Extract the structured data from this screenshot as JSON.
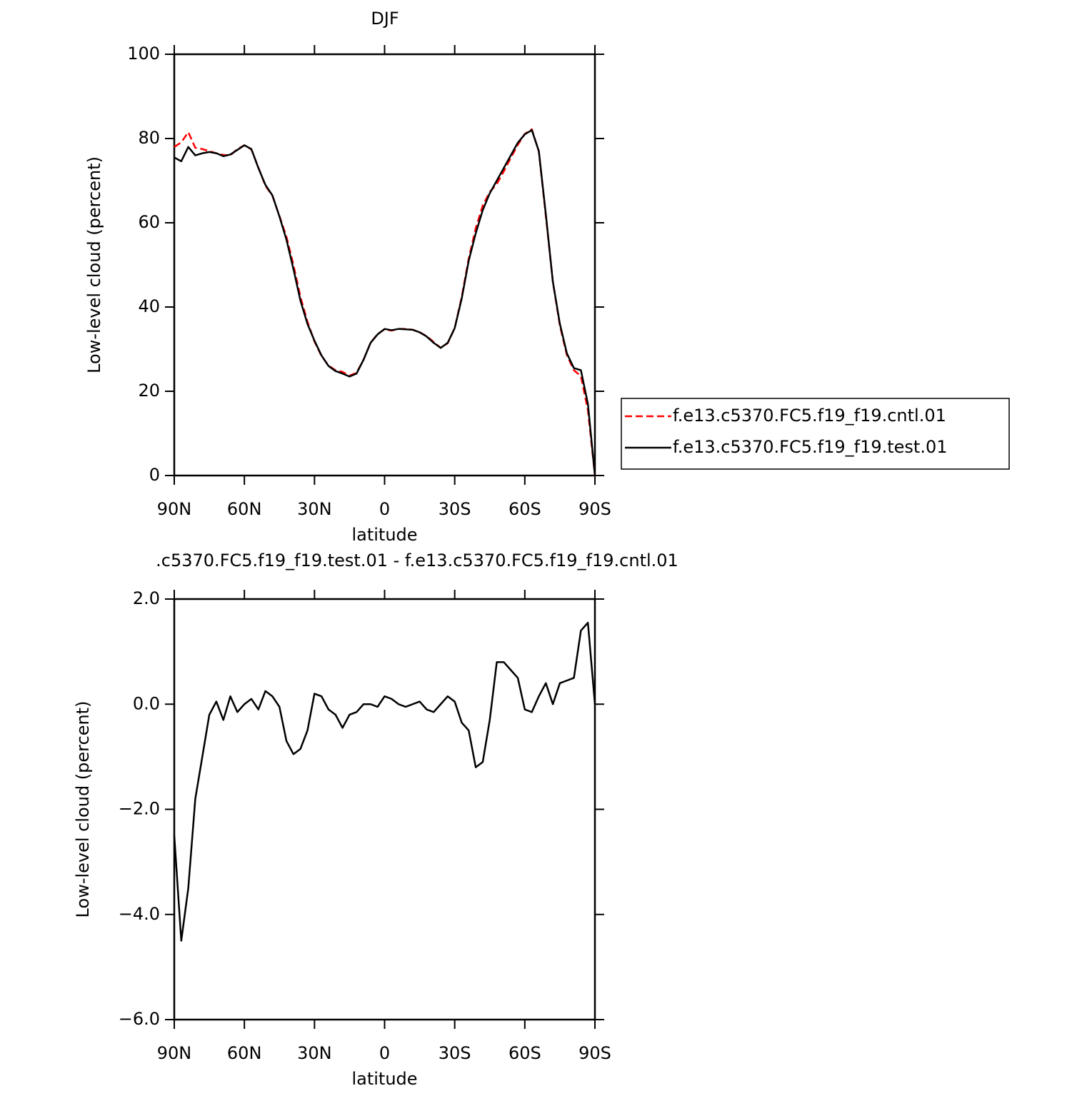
{
  "chart_data": [
    {
      "type": "line",
      "title": "DJF",
      "xlabel": "latitude",
      "ylabel": "Low-level cloud (percent)",
      "x": [
        90,
        87,
        84,
        81,
        78,
        75,
        72,
        69,
        66,
        63,
        60,
        57,
        54,
        51,
        48,
        45,
        42,
        39,
        36,
        33,
        30,
        27,
        24,
        21,
        18,
        15,
        12,
        9,
        6,
        3,
        0,
        -3,
        -6,
        -9,
        -12,
        -15,
        -18,
        -21,
        -24,
        -27,
        -30,
        -33,
        -36,
        -39,
        -42,
        -45,
        -48,
        -51,
        -54,
        -57,
        -60,
        -63,
        -66,
        -69,
        -72,
        -75,
        -78,
        -81,
        -84,
        -87,
        -90
      ],
      "series": [
        {
          "name": "f.e13.c5370.FC5.f19_f19.cntl.01",
          "color": "#ff0000",
          "dash": true,
          "values": [
            78,
            79.1,
            81.5,
            77.8,
            77.5,
            77,
            76.5,
            76.1,
            76,
            77.5,
            78.4,
            77.4,
            73.1,
            68.8,
            66.4,
            61.6,
            56.7,
            50,
            42.4,
            36.5,
            31.8,
            28.4,
            26.1,
            25,
            24.6,
            23.7,
            24.4,
            27.5,
            31.5,
            33.6,
            34.7,
            34.4,
            34.8,
            34.8,
            34.6,
            34,
            33.1,
            31.7,
            30.3,
            31.4,
            35,
            42.4,
            51.5,
            58.7,
            64.1,
            67.3,
            69.2,
            72.2,
            75.4,
            78.5,
            81.1,
            82.2,
            76.9,
            61.6,
            46,
            35.6,
            28.6,
            25,
            23.6,
            15.5,
            0
          ]
        },
        {
          "name": "f.e13.c5370.FC5.f19_f19.test.01",
          "color": "#000000",
          "dash": false,
          "values": [
            75.5,
            74.6,
            78,
            76,
            76.5,
            76.8,
            76.5,
            75.8,
            76.2,
            77.3,
            78.4,
            77.5,
            73,
            69,
            66.5,
            61.5,
            56,
            49,
            41.5,
            36,
            32,
            28.5,
            26,
            24.8,
            24.2,
            23.5,
            24.2,
            27.5,
            31.5,
            33.5,
            34.8,
            34.5,
            34.8,
            34.7,
            34.6,
            34,
            33,
            31.5,
            30.3,
            31.5,
            35,
            42,
            51,
            57.5,
            63,
            67,
            70,
            73,
            76,
            79,
            81,
            82,
            77,
            62,
            46,
            36,
            29,
            25.5,
            25,
            17,
            0
          ]
        }
      ],
      "xlim": [
        90,
        -90
      ],
      "xticks": [
        {
          "value": 90,
          "label": "90N"
        },
        {
          "value": 60,
          "label": "60N"
        },
        {
          "value": 30,
          "label": "30N"
        },
        0,
        {
          "value": -30,
          "label": "30S"
        },
        {
          "value": -60,
          "label": "60S"
        },
        {
          "value": -90,
          "label": "90S"
        }
      ],
      "ylim": [
        0,
        100
      ],
      "yticks": [
        0,
        20,
        40,
        60,
        80,
        100
      ],
      "grid": false,
      "legend": "right"
    },
    {
      "type": "line",
      "title": ".c5370.FC5.f19_f19.test.01 - f.e13.c5370.FC5.f19_f19.cntl.01",
      "xlabel": "latitude",
      "ylabel": "Low-level cloud (percent)",
      "x": [
        90,
        87,
        84,
        81,
        78,
        75,
        72,
        69,
        66,
        63,
        60,
        57,
        54,
        51,
        48,
        45,
        42,
        39,
        36,
        33,
        30,
        27,
        24,
        21,
        18,
        15,
        12,
        9,
        6,
        3,
        0,
        -3,
        -6,
        -9,
        -12,
        -15,
        -18,
        -21,
        -24,
        -27,
        -30,
        -33,
        -36,
        -39,
        -42,
        -45,
        -48,
        -51,
        -54,
        -57,
        -60,
        -63,
        -66,
        -69,
        -72,
        -75,
        -78,
        -81,
        -84,
        -87,
        -90
      ],
      "series": [
        {
          "color": "#000000",
          "dash": false,
          "values": [
            -2.5,
            -4.5,
            -3.5,
            -1.8,
            -1,
            -0.2,
            0.05,
            -0.3,
            0.15,
            -0.15,
            0,
            0.1,
            -0.1,
            0.25,
            0.15,
            -0.05,
            -0.7,
            -0.95,
            -0.85,
            -0.5,
            0.2,
            0.15,
            -0.1,
            -0.2,
            -0.45,
            -0.2,
            -0.15,
            0,
            0,
            -0.05,
            0.15,
            0.1,
            0,
            -0.05,
            0,
            0.05,
            -0.1,
            -0.15,
            0,
            0.15,
            0.05,
            -0.35,
            -0.5,
            -1.2,
            -1.1,
            -0.3,
            0.8,
            0.8,
            0.65,
            0.5,
            -0.1,
            -0.15,
            0.15,
            0.4,
            0,
            0.4,
            0.45,
            0.5,
            1.4,
            1.55,
            0
          ]
        }
      ],
      "xlim": [
        90,
        -90
      ],
      "xticks": [
        {
          "value": 90,
          "label": "90N"
        },
        {
          "value": 60,
          "label": "60N"
        },
        {
          "value": 30,
          "label": "30N"
        },
        0,
        {
          "value": -30,
          "label": "30S"
        },
        {
          "value": -60,
          "label": "60S"
        },
        {
          "value": -90,
          "label": "90S"
        }
      ],
      "ylim": [
        -6,
        2
      ],
      "yticks": [
        {
          "value": -6,
          "label": "−6.0"
        },
        {
          "value": -4,
          "label": "−4.0"
        },
        {
          "value": -2,
          "label": "−2.0"
        },
        {
          "value": 0,
          "label": "0.0"
        },
        {
          "value": 2,
          "label": "2.0"
        }
      ],
      "grid": false
    }
  ]
}
